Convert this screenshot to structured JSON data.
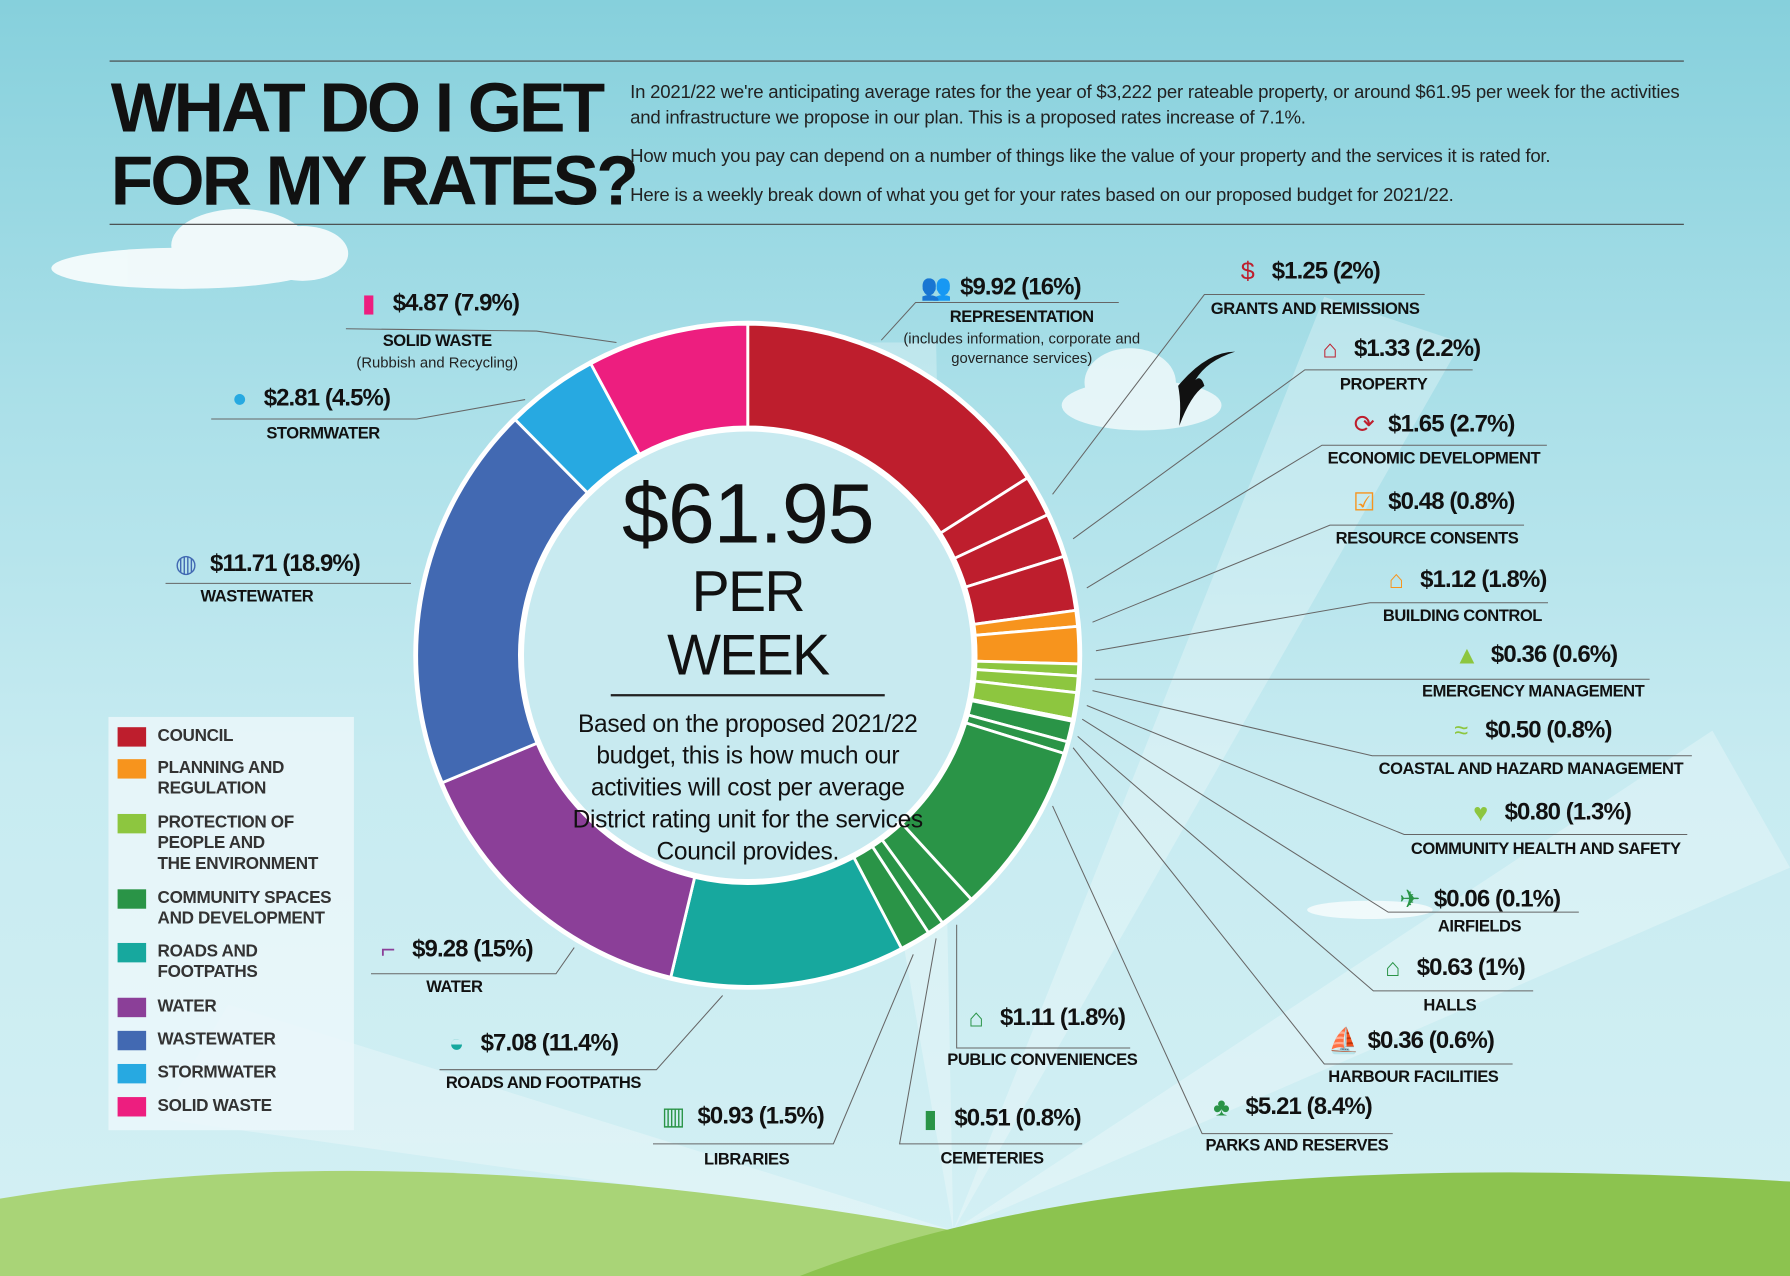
{
  "header": {
    "title_line1": "WHAT DO I GET",
    "title_line2": "FOR MY RATES?",
    "intro": [
      "In 2021/22 we're anticipating average rates for the year of $3,222 per rateable property, or around $61.95 per week for the activities and infrastructure we propose in our plan. This is a proposed rates increase of 7.1%.",
      "How much you pay can depend on a number of things like the value of your property and the services it is rated for.",
      "Here is a weekly break down of what you get for your rates based on our proposed budget for 2021/22."
    ]
  },
  "center": {
    "amount": "$61.95",
    "per": "PER WEEK",
    "description": "Based on the proposed 2021/22 budget, this is how much our activities will cost per average District rating unit for the services Council provides."
  },
  "legend": [
    {
      "label": "COUNCIL",
      "color": "#be1e2d"
    },
    {
      "label": "PLANNING AND\nREGULATION",
      "color": "#f7941d"
    },
    {
      "label": "PROTECTION OF\nPEOPLE AND\nTHE ENVIRONMENT",
      "color": "#8dc63f"
    },
    {
      "label": "COMMUNITY SPACES\nAND DEVELOPMENT",
      "color": "#2a9447"
    },
    {
      "label": "ROADS AND\nFOOTPATHS",
      "color": "#17a89e"
    },
    {
      "label": "WATER",
      "color": "#8b3f98"
    },
    {
      "label": "WASTEWATER",
      "color": "#4269b2"
    },
    {
      "label": "STORMWATER",
      "color": "#27a9e1"
    },
    {
      "label": "SOLID WASTE",
      "color": "#ed1e7f"
    }
  ],
  "chart_data": {
    "type": "pie",
    "style": "donut",
    "total_label": "$61.95 PER WEEK",
    "categories": [
      "Representation",
      "Grants and Remissions",
      "Property",
      "Economic Development",
      "Resource Consents",
      "Building Control",
      "Emergency Management",
      "Coastal and Hazard Management",
      "Community Health and Safety",
      "Airfields",
      "Halls",
      "Harbour Facilities",
      "Parks and Reserves",
      "Public Conveniences",
      "Cemeteries",
      "Libraries",
      "Roads and Footpaths",
      "Water",
      "Wastewater",
      "Stormwater",
      "Solid Waste"
    ],
    "values": [
      9.92,
      1.25,
      1.33,
      1.65,
      0.48,
      1.12,
      0.36,
      0.5,
      0.8,
      0.06,
      0.63,
      0.36,
      5.21,
      1.11,
      0.51,
      0.93,
      7.08,
      9.28,
      11.71,
      2.81,
      4.87
    ],
    "percents": [
      16,
      2,
      2.2,
      2.7,
      0.8,
      1.8,
      0.6,
      0.8,
      1.3,
      0.1,
      1,
      0.6,
      8.4,
      1.8,
      0.8,
      1.5,
      11.4,
      15,
      18.9,
      4.5,
      7.9
    ],
    "groups": [
      0,
      0,
      0,
      0,
      1,
      1,
      2,
      2,
      2,
      3,
      3,
      3,
      3,
      3,
      3,
      3,
      4,
      5,
      6,
      7,
      8
    ],
    "start": "12 o'clock, clockwise"
  },
  "labels": [
    {
      "value": "$9.92 (16%)",
      "name": "REPRESENTATION",
      "sub": "(includes information, corporate and governance services)",
      "icon": "people-icon",
      "icon_color": "#d9534f"
    },
    {
      "value": "$1.25 (2%)",
      "name": "GRANTS AND REMISSIONS",
      "icon": "hand-dollar-icon",
      "icon_color": "#be1e2d"
    },
    {
      "value": "$1.33 (2.2%)",
      "name": "PROPERTY",
      "icon": "house-icon",
      "icon_color": "#be1e2d"
    },
    {
      "value": "$1.65 (2.7%)",
      "name": "ECONOMIC DEVELOPMENT",
      "icon": "dollar-cycle-icon",
      "icon_color": "#be1e2d"
    },
    {
      "value": "$0.48 (0.8%)",
      "name": "RESOURCE CONSENTS",
      "icon": "clipboard-icon",
      "icon_color": "#f7941d"
    },
    {
      "value": "$1.12 (1.8%)",
      "name": "BUILDING CONTROL",
      "icon": "building-icon",
      "icon_color": "#f7941d"
    },
    {
      "value": "$0.36 (0.6%)",
      "name": "EMERGENCY MANAGEMENT",
      "icon": "warning-icon",
      "icon_color": "#8dc63f"
    },
    {
      "value": "$0.50 (0.8%)",
      "name": "COASTAL AND HAZARD MANAGEMENT",
      "icon": "tree-waves-icon",
      "icon_color": "#8dc63f"
    },
    {
      "value": "$0.80 (1.3%)",
      "name": "COMMUNITY HEALTH AND SAFETY",
      "icon": "heart-cross-icon",
      "icon_color": "#8dc63f"
    },
    {
      "value": "$0.06 (0.1%)",
      "name": "AIRFIELDS",
      "icon": "plane-icon",
      "icon_color": "#2a9447"
    },
    {
      "value": "$0.63 (1%)",
      "name": "HALLS",
      "icon": "hall-icon",
      "icon_color": "#2a9447"
    },
    {
      "value": "$0.36 (0.6%)",
      "name": "HARBOUR FACILITIES",
      "icon": "boat-ramp-icon",
      "icon_color": "#2a9447"
    },
    {
      "value": "$5.21 (8.4%)",
      "name": "PARKS AND RESERVES",
      "icon": "tree-bench-icon",
      "icon_color": "#2a9447"
    },
    {
      "value": "$1.11 (1.8%)",
      "name": "PUBLIC CONVENIENCES",
      "icon": "toilet-icon",
      "icon_color": "#2a9447"
    },
    {
      "value": "$0.51 (0.8%)",
      "name": "CEMETERIES",
      "icon": "headstone-icon",
      "icon_color": "#2a9447"
    },
    {
      "value": "$0.93 (1.5%)",
      "name": "LIBRARIES",
      "icon": "books-icon",
      "icon_color": "#2a9447"
    },
    {
      "value": "$7.08 (11.4%)",
      "name": "ROADS AND FOOTPATHS",
      "icon": "car-icon",
      "icon_color": "#17a89e"
    },
    {
      "value": "$9.28 (15%)",
      "name": "WATER",
      "icon": "tap-icon",
      "icon_color": "#8b3f98"
    },
    {
      "value": "$11.71 (18.9%)",
      "name": "WASTEWATER",
      "icon": "manhole-icon",
      "icon_color": "#4269b2"
    },
    {
      "value": "$2.81 (4.5%)",
      "name": "STORMWATER",
      "icon": "water-drop-icon",
      "icon_color": "#27a9e1"
    },
    {
      "value": "$4.87 (7.9%)",
      "name": "SOLID WASTE",
      "sub": "(Rubbish and Recycling)",
      "icon": "bin-bottle-icon",
      "icon_color": "#ed1e7f"
    }
  ]
}
